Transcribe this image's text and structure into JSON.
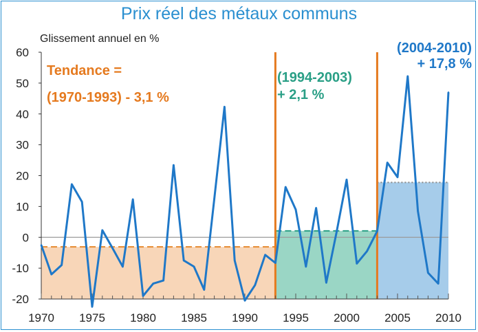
{
  "chart_data": {
    "type": "line",
    "title": "Prix réel des métaux communs",
    "ylabel": "Glissement annuel en %",
    "xlabel": "",
    "xlim": [
      1970,
      2010
    ],
    "ylim": [
      -20,
      60
    ],
    "x_ticks": [
      1970,
      1975,
      1980,
      1985,
      1990,
      1995,
      2000,
      2005,
      2010
    ],
    "y_ticks": [
      -20,
      -10,
      0,
      10,
      20,
      30,
      40,
      50,
      60
    ],
    "grid": false,
    "series": [
      {
        "color": "#1f78c8",
        "x": [
          1970,
          1971,
          1972,
          1973,
          1974,
          1975,
          1976,
          1977,
          1978,
          1979,
          1980,
          1981,
          1982,
          1983,
          1984,
          1985,
          1986,
          1987,
          1988,
          1989,
          1990,
          1991,
          1992,
          1993,
          1994,
          1995,
          1996,
          1997,
          1998,
          1999,
          2000,
          2001,
          2002,
          2003,
          2004,
          2005,
          2006,
          2007,
          2008,
          2009,
          2010
        ],
        "y": [
          -2.5,
          -12,
          -9,
          17.2,
          11.5,
          -22.5,
          2.3,
          -3.5,
          -9.5,
          12.3,
          -19,
          -15,
          -14,
          23.4,
          -7.5,
          -9.5,
          -17,
          12.5,
          42.3,
          -7.5,
          -20.5,
          -15.5,
          -5.7,
          -8.3,
          16.3,
          9,
          -9.5,
          9.5,
          -14.7,
          1.5,
          18.7,
          -8.5,
          -4.5,
          2,
          24.2,
          19.5,
          52.2,
          8.5,
          -11.5,
          -15,
          47
        ]
      }
    ],
    "trend_periods": [
      {
        "start": 1970,
        "end": 1993,
        "value": -3.1,
        "color": "#e58a2e",
        "fill": "#f7d2b0",
        "label_line1": "Tendance =",
        "label_line2": "(1970-1993) - 3,1 %"
      },
      {
        "start": 1993,
        "end": 2003,
        "value": 2.1,
        "color": "#2a9f86",
        "fill": "#8fd1bf",
        "label_line1": "(1994-2003)",
        "label_line2": "+ 2,1 %"
      },
      {
        "start": 2003,
        "end": 2010,
        "value": 17.8,
        "color": "#8a8a8a",
        "fill": "#9cc6e8",
        "label_line1": "(2004-2010)",
        "label_line2": "+ 17,8 %"
      }
    ],
    "dividers": [
      1993,
      2003
    ],
    "divider_color": "#e57a1f",
    "label_colors": {
      "p1": "#e57a1f",
      "p2": "#2a9f86",
      "p3": "#1f78c8"
    }
  }
}
